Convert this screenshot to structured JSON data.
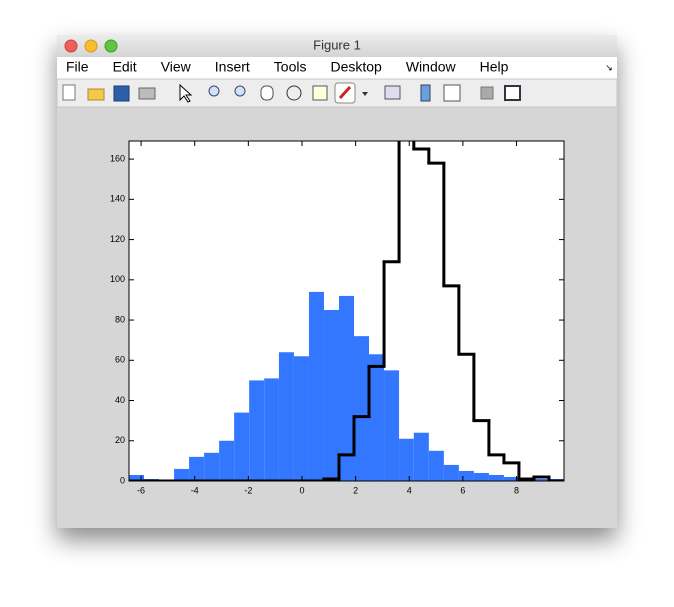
{
  "window": {
    "title": "Figure 1",
    "menu": [
      "File",
      "Edit",
      "View",
      "Insert",
      "Tools",
      "Desktop",
      "Window",
      "Help"
    ]
  },
  "chart_data": {
    "type": "histogram",
    "bins": [
      -6.45,
      -5.89,
      -5.33,
      -4.77,
      -4.21,
      -3.65,
      -3.09,
      -2.53,
      -1.97,
      -1.41,
      -0.86,
      -0.3,
      0.26,
      0.82,
      1.38,
      1.94,
      2.5,
      3.06,
      3.62,
      4.17,
      4.73,
      5.29,
      5.85,
      6.41,
      6.97,
      7.53,
      8.09,
      8.65,
      9.21,
      9.77
    ],
    "series": [
      {
        "color": "#3377ff",
        "values": [
          3,
          1,
          0,
          6,
          12,
          14,
          20,
          34,
          50,
          51,
          64,
          62,
          94,
          85,
          92,
          72,
          63,
          55,
          21,
          24,
          15,
          8,
          5,
          4,
          3,
          2,
          1,
          1,
          1
        ]
      },
      {
        "color": "#000000",
        "style": "stairs",
        "values": [
          0,
          0,
          0,
          0,
          0,
          0,
          0,
          0,
          0,
          0,
          0,
          0,
          0,
          1,
          13,
          32,
          57,
          109,
          170,
          165,
          158,
          97,
          63,
          30,
          13,
          9,
          1,
          2,
          0
        ]
      }
    ],
    "xlim": [
      -6.45,
      9.77
    ],
    "ylim": [
      0,
      169
    ],
    "xticks": [
      -6,
      -4,
      -2,
      0,
      2,
      4,
      6,
      8
    ],
    "yticks": [
      0,
      20,
      40,
      60,
      80,
      100,
      120,
      140,
      160
    ]
  }
}
